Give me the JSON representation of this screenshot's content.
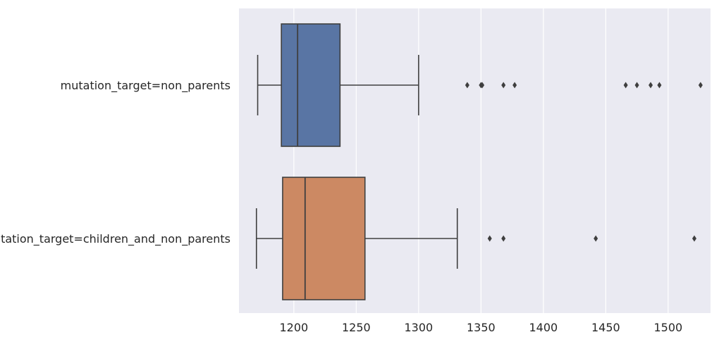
{
  "chart_data": {
    "type": "box",
    "orientation": "horizontal",
    "title": "",
    "xlabel": "",
    "ylabel": "",
    "xlim": [
      1156,
      1534
    ],
    "x_ticks": [
      1200,
      1250,
      1300,
      1350,
      1400,
      1450,
      1500
    ],
    "x_tick_labels": [
      "1200",
      "1250",
      "1300",
      "1350",
      "1400",
      "1450",
      "1500"
    ],
    "grid": true,
    "background_color": "#EAEAF2",
    "categories": [
      "mutation_target=non_parents",
      "mutation_target=children_and_non_parents"
    ],
    "boxes": [
      {
        "category": "mutation_target=non_parents",
        "color": "#5975A4",
        "whisker_low": 1171,
        "q1": 1190,
        "median": 1203,
        "q3": 1237,
        "whisker_high": 1300,
        "outliers": [
          1339,
          1350,
          1351,
          1368,
          1377,
          1466,
          1475,
          1486,
          1493,
          1526
        ]
      },
      {
        "category": "mutation_target=children_and_non_parents",
        "color": "#CC8963",
        "whisker_low": 1170,
        "q1": 1191,
        "median": 1209,
        "q3": 1257,
        "whisker_high": 1331,
        "outliers": [
          1357,
          1368,
          1442,
          1521
        ]
      }
    ]
  }
}
